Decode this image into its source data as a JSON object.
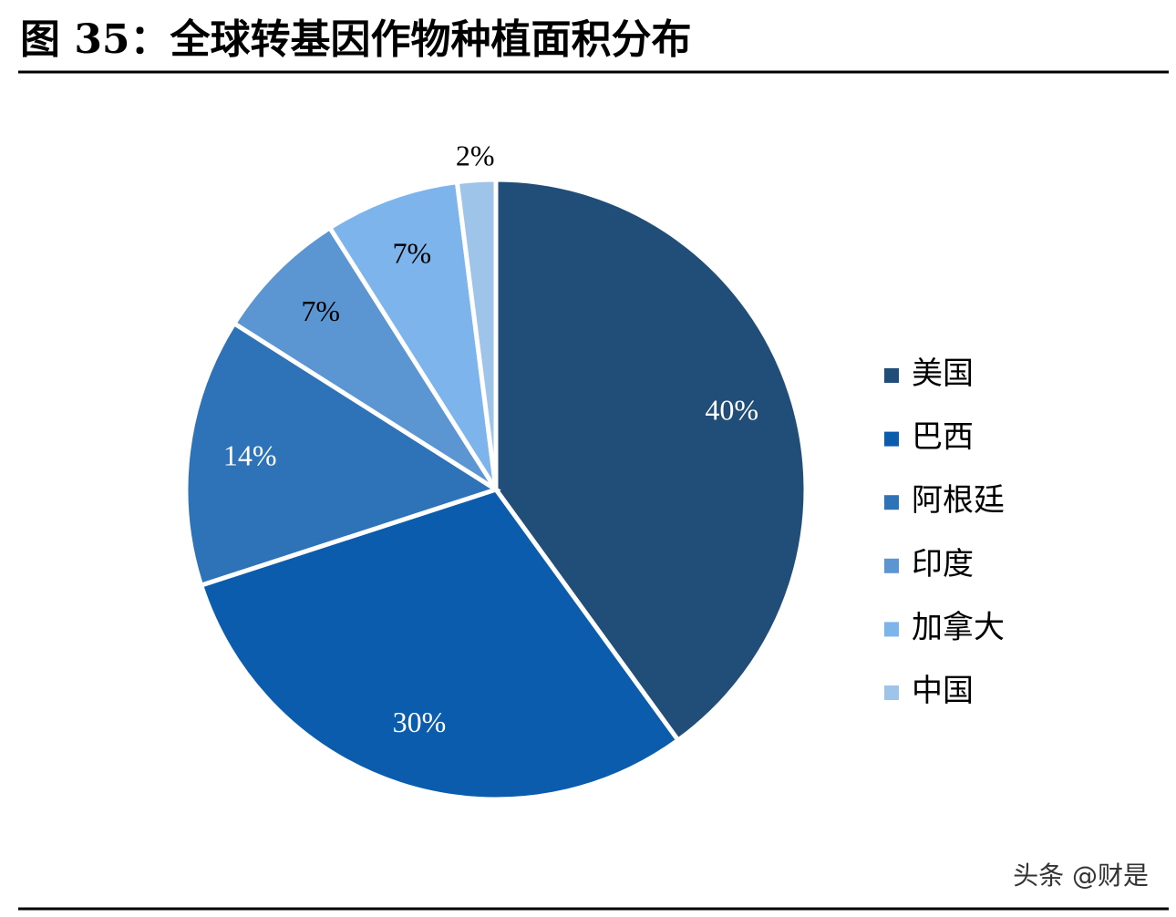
{
  "chart_data": {
    "type": "pie",
    "title": "图 35：全球转基因作物种植面积分布",
    "categories": [
      "美国",
      "巴西",
      "阿根廷",
      "印度",
      "加拿大",
      "中国"
    ],
    "values": [
      40,
      30,
      14,
      7,
      7,
      2
    ],
    "value_labels": [
      "40%",
      "30%",
      "14%",
      "7%",
      "7%",
      "2%"
    ],
    "colors": [
      "#214e78",
      "#0b5cad",
      "#2e72b8",
      "#5b96d2",
      "#7db4ec",
      "#9fc4ea"
    ],
    "legend": "right"
  },
  "watermark": "头条 @财是"
}
